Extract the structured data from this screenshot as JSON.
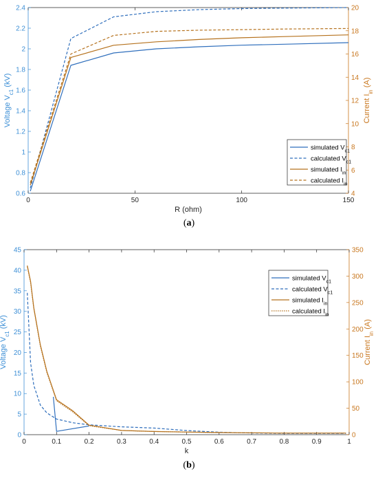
{
  "colors": {
    "blue": "#2e6ebc",
    "orange": "#b5711c",
    "axis_blue": "#3d8fd6",
    "axis_orange": "#c8761d"
  },
  "captions": {
    "a": "a",
    "b": "b"
  },
  "chart_data": [
    {
      "type": "line",
      "panel": "a",
      "xlabel": "R (ohm)",
      "ylabel_left": {
        "text": "Voltage V",
        "sub": "c1",
        "unit": " (kV)"
      },
      "ylabel_right": {
        "text": "Current I",
        "sub": "in",
        "unit": " (A)"
      },
      "xlim": [
        0,
        150
      ],
      "ylim_left": [
        0.6,
        2.4
      ],
      "ylim_right": [
        4,
        20
      ],
      "xticks": [
        0,
        50,
        100,
        150
      ],
      "yticks_left": [
        0.6,
        0.8,
        1,
        1.2,
        1.4,
        1.6,
        1.8,
        2,
        2.2,
        2.4
      ],
      "yticks_right": [
        4,
        6,
        8,
        10,
        12,
        14,
        16,
        18,
        20
      ],
      "grid": false,
      "legend_position": "bottom-right",
      "series": [
        {
          "name": "simulated V",
          "sub": "c1",
          "axis": "left",
          "color": "blue",
          "dash": "solid",
          "x": [
            1,
            20,
            40,
            60,
            80,
            100,
            120,
            150
          ],
          "y": [
            0.62,
            1.84,
            1.96,
            2.0,
            2.02,
            2.035,
            2.045,
            2.06
          ]
        },
        {
          "name": "calculated V",
          "sub": "c1",
          "axis": "left",
          "color": "blue",
          "dash": "dashed",
          "x": [
            1,
            20,
            40,
            60,
            80,
            100,
            120,
            150
          ],
          "y": [
            0.65,
            2.1,
            2.31,
            2.36,
            2.38,
            2.39,
            2.395,
            2.4
          ]
        },
        {
          "name": "simulated I",
          "sub": "in",
          "axis": "right",
          "color": "orange",
          "dash": "solid",
          "x": [
            1,
            20,
            40,
            60,
            80,
            100,
            120,
            150
          ],
          "y": [
            4.7,
            15.7,
            16.75,
            17.05,
            17.25,
            17.4,
            17.5,
            17.65
          ]
        },
        {
          "name": "calculated I",
          "sub": "in",
          "axis": "right",
          "color": "orange",
          "dash": "dashed",
          "x": [
            1,
            20,
            40,
            60,
            80,
            100,
            120,
            150
          ],
          "y": [
            4.9,
            16.0,
            17.6,
            17.95,
            18.05,
            18.1,
            18.15,
            18.2
          ]
        }
      ]
    },
    {
      "type": "line",
      "panel": "b",
      "xlabel": "k",
      "ylabel_left": {
        "text": "Voltage V",
        "sub": "c1",
        "unit": " (kV)"
      },
      "ylabel_right": {
        "text": "Current I",
        "sub": "in",
        "unit": " (A)"
      },
      "xlim": [
        0,
        1
      ],
      "ylim_left": [
        0,
        45
      ],
      "ylim_right": [
        0,
        350
      ],
      "xticks": [
        0,
        0.1,
        0.2,
        0.3,
        0.4,
        0.5,
        0.6,
        0.7,
        0.8,
        0.9,
        1
      ],
      "yticks_left": [
        0,
        5,
        10,
        15,
        20,
        25,
        30,
        35,
        40,
        45
      ],
      "yticks_right": [
        0,
        50,
        100,
        150,
        200,
        250,
        300,
        350
      ],
      "grid": false,
      "legend_position": "top-right",
      "series": [
        {
          "name": "simulated V",
          "sub": "c1",
          "axis": "left",
          "color": "blue",
          "dash": "solid",
          "x": [
            0.09,
            0.1,
            0.2
          ],
          "y": [
            9.2,
            0.8,
            2.1
          ]
        },
        {
          "name": "calculated V",
          "sub": "c1",
          "axis": "left",
          "color": "blue",
          "dash": "dashed",
          "x": [
            0.01,
            0.02,
            0.03,
            0.05,
            0.07,
            0.1,
            0.15,
            0.2,
            0.3,
            0.4,
            0.5,
            0.6,
            0.7,
            0.8,
            0.9,
            0.99
          ],
          "y": [
            34.5,
            17.5,
            12,
            7.2,
            5.3,
            3.8,
            2.9,
            2.4,
            1.9,
            1.6,
            1.0,
            0.6,
            0.4,
            0.3,
            0.3,
            0.3
          ]
        },
        {
          "name": "simulated I",
          "sub": "in",
          "axis": "right",
          "color": "orange",
          "dash": "solid",
          "x": [
            0.01,
            0.02,
            0.03,
            0.05,
            0.07,
            0.1,
            0.15,
            0.2,
            0.3,
            0.4,
            0.5,
            0.6,
            0.7,
            0.8,
            0.9,
            0.99
          ],
          "y": [
            320,
            290,
            240,
            170,
            120,
            66,
            45,
            18,
            8,
            6,
            5,
            4,
            3.5,
            3,
            3,
            3
          ]
        },
        {
          "name": "calculated I",
          "sub": "in",
          "axis": "right",
          "color": "orange",
          "dash": "dotted",
          "x": [
            0.01,
            0.02,
            0.03,
            0.05,
            0.07,
            0.1,
            0.15,
            0.2,
            0.3,
            0.4,
            0.5,
            0.6,
            0.7,
            0.8,
            0.9,
            0.99
          ],
          "y": [
            318,
            288,
            238,
            168,
            118,
            64,
            43,
            17,
            8,
            6,
            5,
            4,
            3.5,
            3,
            3,
            3
          ]
        }
      ]
    }
  ]
}
